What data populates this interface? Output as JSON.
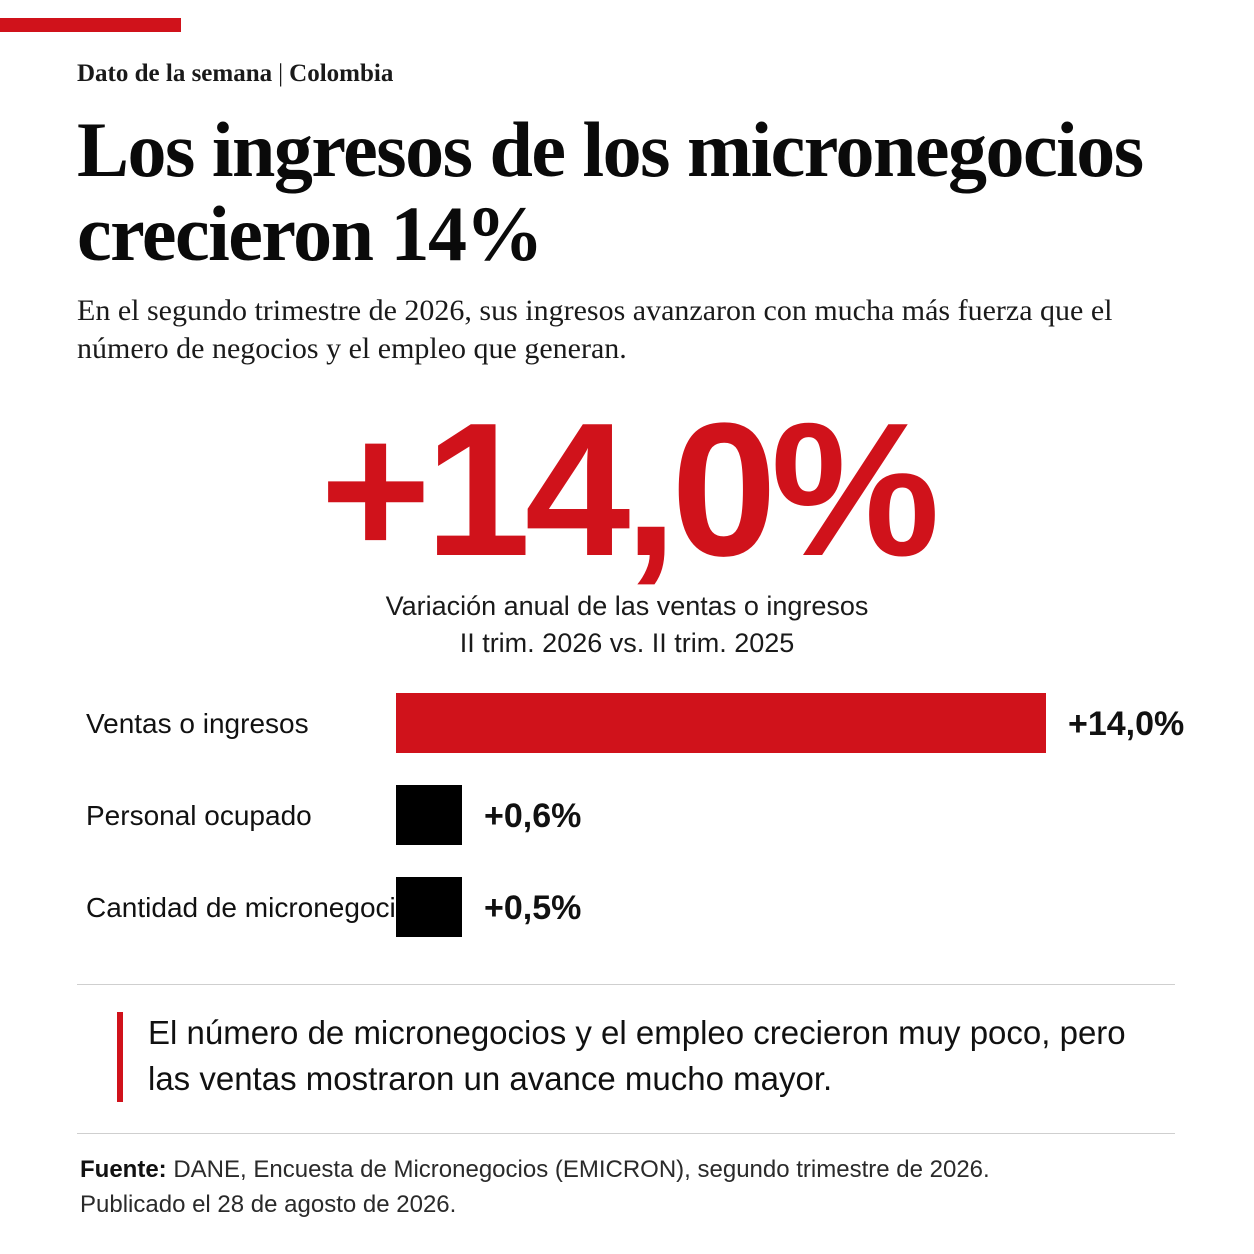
{
  "header": {
    "kicker_left": "Dato de la semana",
    "kicker_sep": "|",
    "kicker_right": "Colombia",
    "title": "Los ingresos de los micronegocios crecieron 14%",
    "subtitle": "En el segundo trimestre de 2026, sus ingresos avanzaron con mucha más fuerza que el número de negocios y el empleo que generan."
  },
  "kpi": {
    "value": "+14,0%",
    "label_line1": "Variación anual de las ventas o ingresos",
    "label_line2": "II trim. 2026 vs. II trim. 2025"
  },
  "chart_data": {
    "type": "bar",
    "orientation": "horizontal",
    "title": "",
    "xlabel": "",
    "ylabel": "",
    "unit": "%",
    "categories": [
      "Ventas o ingresos",
      "Personal ocupado",
      "Cantidad de micronegocios"
    ],
    "values": [
      14.0,
      0.6,
      0.5
    ],
    "labels": [
      "+14,0%",
      "+0,6%",
      "+0,5%"
    ],
    "colors": [
      "#d0121b",
      "#000000",
      "#000000"
    ],
    "grid": false,
    "legend": "none"
  },
  "note": "El número de micronegocios y el empleo crecieron muy poco, pero las ventas mostraron un avance mucho mayor.",
  "source": {
    "label": "Fuente:",
    "line1": "DANE, Encuesta de Micronegocios (EMICRON), segundo trimestre de 2026.",
    "line2": "Publicado el 28 de agosto de 2026."
  },
  "colors": {
    "accent": "#d0121b",
    "text": "#111111",
    "rule": "#cfcfcf"
  }
}
